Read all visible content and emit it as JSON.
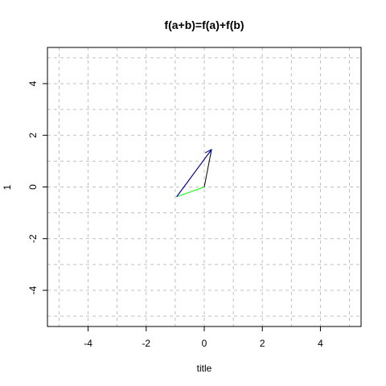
{
  "chart_data": {
    "type": "line",
    "title": "f(a+b)=f(a)+f(b)",
    "xlabel": "title",
    "ylabel": "1",
    "xlim": [
      -5.4,
      5.4
    ],
    "ylim": [
      -5.4,
      5.4
    ],
    "x_ticks": [
      -4,
      -2,
      0,
      2,
      4
    ],
    "y_ticks": [
      -4,
      -2,
      0,
      2,
      4
    ],
    "x_tick_labels": [
      "-4",
      "-2",
      "0",
      "2",
      "4"
    ],
    "y_tick_labels": [
      "-4",
      "-2",
      "0",
      "2",
      "4"
    ],
    "grid": true,
    "grid_x": [
      -5,
      -4,
      -3,
      -2,
      -1,
      0,
      1,
      2,
      3,
      4,
      5
    ],
    "grid_y": [
      -5,
      -4,
      -3,
      -2,
      -1,
      0,
      1,
      2,
      3,
      4,
      5
    ],
    "series": [
      {
        "color": "#00ff00",
        "arrow": false,
        "x": [
          0,
          -0.95
        ],
        "y": [
          0,
          -0.38
        ]
      },
      {
        "color": "#000000",
        "arrow": false,
        "x": [
          0,
          0.25
        ],
        "y": [
          0,
          1.45
        ]
      },
      {
        "color": "#0000ff",
        "arrow": false,
        "x": [
          -0.95,
          0.25
        ],
        "y": [
          -0.38,
          1.45
        ]
      },
      {
        "color": "#000080",
        "arrow": true,
        "x": [
          -0.95,
          0.25
        ],
        "y": [
          -0.38,
          1.45
        ]
      }
    ],
    "extra_segments": [
      {
        "color": "#000000",
        "x": [
          -5.4,
          -5.4
        ],
        "y": [
          3.8,
          4.0
        ]
      }
    ]
  }
}
